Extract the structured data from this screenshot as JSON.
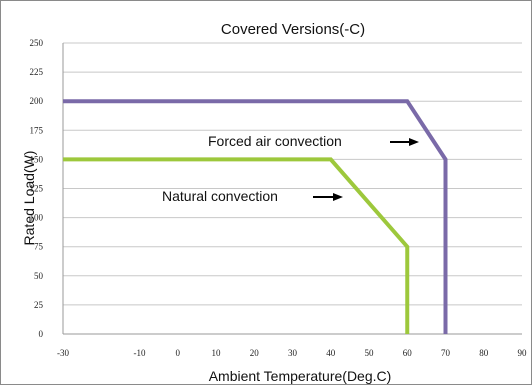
{
  "chart_data": {
    "type": "line",
    "title": "Covered Versions(-C)",
    "xlabel": "Ambient Temperature(Deg.C)",
    "ylabel": "Rated Load(W)",
    "xlim": [
      -30,
      90
    ],
    "ylim": [
      0,
      250
    ],
    "xticks": [
      -30,
      -10,
      0,
      10,
      20,
      30,
      40,
      50,
      60,
      70,
      80,
      90
    ],
    "yticks": [
      0,
      25,
      50,
      75,
      100,
      125,
      150,
      175,
      200,
      225,
      250
    ],
    "grid": true,
    "series": [
      {
        "name": "Forced air convection",
        "color": "#7a6aa8",
        "points": [
          [
            -30,
            200
          ],
          [
            60,
            200
          ],
          [
            70,
            150
          ],
          [
            70,
            0
          ]
        ]
      },
      {
        "name": "Natural convection",
        "color": "#9dc83c",
        "points": [
          [
            -30,
            150
          ],
          [
            40,
            150
          ],
          [
            60,
            75
          ],
          [
            60,
            0
          ]
        ]
      }
    ],
    "annotations": [
      {
        "text": "Forced air convection",
        "series": 0
      },
      {
        "text": "Natural convection",
        "series": 1
      }
    ]
  }
}
